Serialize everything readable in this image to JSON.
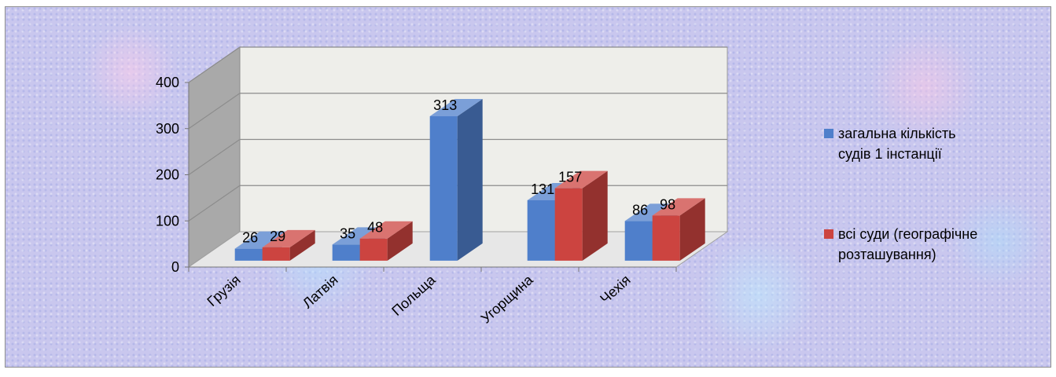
{
  "chart_data": {
    "type": "bar",
    "title": "",
    "xlabel": "",
    "ylabel": "",
    "ylim": [
      0,
      400
    ],
    "yticks": [
      0,
      100,
      200,
      300,
      400
    ],
    "categories": [
      "Грузія",
      "Латвія",
      "Польща",
      "Угорщина",
      "Чехія"
    ],
    "series": [
      {
        "name": "загальна кількість судів 1 інстанції",
        "color": "#4f7fcb",
        "values": [
          26,
          35,
          313,
          131,
          86
        ]
      },
      {
        "name": "всі суди (географічне розташування)",
        "color": "#cc4440",
        "values": [
          29,
          48,
          null,
          157,
          98
        ]
      }
    ],
    "legend": {
      "position": "right",
      "items": [
        [
          "загальна кількість",
          "судів 1 інстанції"
        ],
        [
          "всі суди (географічне",
          "розташування)"
        ]
      ]
    },
    "grid": true,
    "style": "3d-clustered-column"
  }
}
